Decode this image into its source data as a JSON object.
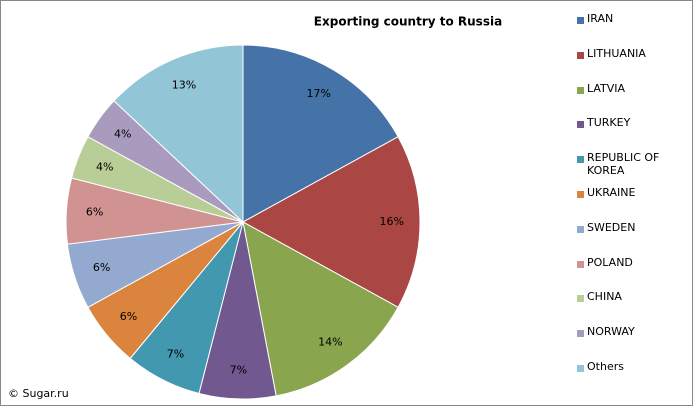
{
  "chart_data": {
    "type": "pie",
    "title": "Exporting country to Russia",
    "categories": [
      "IRAN",
      "LITHUANIA",
      "LATVIA",
      "TURKEY",
      "REPUBLIC OF KOREA",
      "UKRAINE",
      "SWEDEN",
      "POLAND",
      "CHINA",
      "NORWAY",
      "Others"
    ],
    "values": [
      17,
      16,
      14,
      7,
      7,
      6,
      6,
      6,
      4,
      4,
      13
    ],
    "value_labels": [
      "17%",
      "16%",
      "14%",
      "7%",
      "7%",
      "6%",
      "6%",
      "6%",
      "4%",
      "4%",
      "13%"
    ],
    "colors": [
      "#4572a7",
      "#aa4643",
      "#89a54e",
      "#71588f",
      "#4198af",
      "#db843d",
      "#93a9cf",
      "#d19392",
      "#b9cd96",
      "#a99bbd",
      "#92c5d6"
    ],
    "legend": "right",
    "source": "© Sugar.ru"
  }
}
